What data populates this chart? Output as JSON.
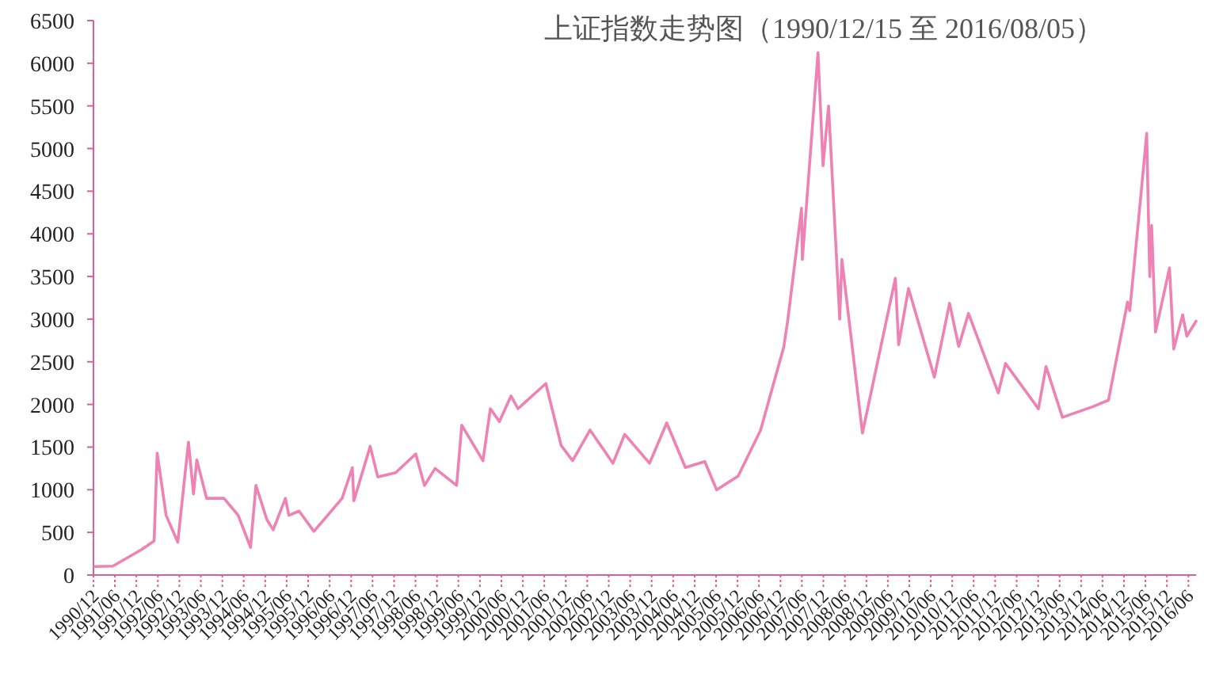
{
  "chart_data": {
    "type": "line",
    "title": "上证指数走势图（1990/12/15 至 2016/08/05）",
    "x": [
      "1990-12-15",
      "1991-05-15",
      "1992-01-15",
      "1992-04-30",
      "1992-05-26",
      "1992-08-10",
      "1992-11-17",
      "1993-02-16",
      "1993-03-31",
      "1993-04-28",
      "1993-07-20",
      "1993-12-15",
      "1994-04-15",
      "1994-07-29",
      "1994-09-13",
      "1994-12-15",
      "1995-02-07",
      "1995-05-22",
      "1995-06-20",
      "1995-09-15",
      "1996-01-19",
      "1996-05-15",
      "1996-09-15",
      "1996-12-11",
      "1996-12-24",
      "1997-05-12",
      "1997-07-15",
      "1997-12-15",
      "1998-06-03",
      "1998-08-17",
      "1998-11-15",
      "1999-05-17",
      "1999-06-30",
      "1999-12-27",
      "2000-02-28",
      "2000-05-15",
      "2000-08-22",
      "2000-10-20",
      "2001-06-14",
      "2001-10-22",
      "2002-01-28",
      "2002-06-25",
      "2003-01-06",
      "2003-04-16",
      "2003-11-13",
      "2004-04-07",
      "2004-09-13",
      "2005-02-25",
      "2005-06-06",
      "2005-12-06",
      "2006-06-15",
      "2006-12-29",
      "2007-02-02",
      "2007-05-29",
      "2007-06-05",
      "2007-10-16",
      "2007-11-28",
      "2008-01-14",
      "2008-04-18",
      "2008-05-06",
      "2008-10-28",
      "2009-08-04",
      "2009-09-01",
      "2009-11-24",
      "2010-07-02",
      "2010-11-08",
      "2011-01-25",
      "2011-04-18",
      "2011-12-28",
      "2012-02-27",
      "2012-12-03",
      "2013-02-06",
      "2013-06-25",
      "2014-03-12",
      "2014-07-22",
      "2014-12-31",
      "2015-01-19",
      "2015-04-27",
      "2015-06-12",
      "2015-07-08",
      "2015-07-24",
      "2015-08-26",
      "2015-12-23",
      "2016-01-28",
      "2016-04-13",
      "2016-05-18",
      "2016-08-05"
    ],
    "values": [
      100,
      105,
      300,
      400,
      1429,
      700,
      386,
      1558,
      950,
      1350,
      900,
      900,
      700,
      325,
      1052,
      650,
      530,
      900,
      700,
      750,
      512,
      700,
      900,
      1258,
      870,
      1510,
      1150,
      1200,
      1420,
      1050,
      1250,
      1050,
      1756,
      1340,
      1950,
      1800,
      2100,
      1950,
      2245,
      1520,
      1340,
      1700,
      1310,
      1650,
      1310,
      1783,
      1260,
      1330,
      998,
      1160,
      1700,
      2675,
      3000,
      4300,
      3700,
      6124,
      4800,
      5500,
      3000,
      3700,
      1664,
      3478,
      2700,
      3360,
      2320,
      3186,
      2680,
      3067,
      2134,
      2480,
      1949,
      2444,
      1849,
      1974,
      2050,
      3200,
      3100,
      4500,
      5178,
      3500,
      4100,
      2850,
      3600,
      2650,
      3050,
      2800,
      2976
    ],
    "color": "#ee82b4",
    "xlim": [
      "1990-12-01",
      "2016-08-05"
    ],
    "xticks": [
      {
        "value": "1990-12",
        "label": "1990/12"
      },
      {
        "value": "1991-06",
        "label": "1991/06"
      },
      {
        "value": "1991-12",
        "label": "1991/12"
      },
      {
        "value": "1992-06",
        "label": "1992/06"
      },
      {
        "value": "1992-12",
        "label": "1992/12"
      },
      {
        "value": "1993-06",
        "label": "1993/06"
      },
      {
        "value": "1993-12",
        "label": "1993/12"
      },
      {
        "value": "1994-06",
        "label": "1994/06"
      },
      {
        "value": "1994-12",
        "label": "1994/12"
      },
      {
        "value": "1995-06",
        "label": "1995/06"
      },
      {
        "value": "1995-12",
        "label": "1995/12"
      },
      {
        "value": "1996-06",
        "label": "1996/06"
      },
      {
        "value": "1996-12",
        "label": "1996/12"
      },
      {
        "value": "1997-06",
        "label": "1997/06"
      },
      {
        "value": "1997-12",
        "label": "1997/12"
      },
      {
        "value": "1998-06",
        "label": "1998/06"
      },
      {
        "value": "1998-12",
        "label": "1998/12"
      },
      {
        "value": "1999-06",
        "label": "1999/06"
      },
      {
        "value": "1999-12",
        "label": "1999/12"
      },
      {
        "value": "2000-06",
        "label": "2000/06"
      },
      {
        "value": "2000-12",
        "label": "2000/12"
      },
      {
        "value": "2001-06",
        "label": "2001/06"
      },
      {
        "value": "2001-12",
        "label": "2001/12"
      },
      {
        "value": "2002-06",
        "label": "2002/06"
      },
      {
        "value": "2002-12",
        "label": "2002/12"
      },
      {
        "value": "2003-06",
        "label": "2003/06"
      },
      {
        "value": "2003-12",
        "label": "2003/12"
      },
      {
        "value": "2004-06",
        "label": "2004/06"
      },
      {
        "value": "2004-12",
        "label": "2004/12"
      },
      {
        "value": "2005-06",
        "label": "2005/06"
      },
      {
        "value": "2005-12",
        "label": "2005/12"
      },
      {
        "value": "2006-06",
        "label": "2006/06"
      },
      {
        "value": "2006-12",
        "label": "2006/12"
      },
      {
        "value": "2007-06",
        "label": "2007/06"
      },
      {
        "value": "2007-12",
        "label": "2007/12"
      },
      {
        "value": "2008-06",
        "label": "2008/06"
      },
      {
        "value": "2008-12",
        "label": "2008/12"
      },
      {
        "value": "2009-06",
        "label": "2009/06"
      },
      {
        "value": "2009-12",
        "label": "2009/12"
      },
      {
        "value": "2010-06",
        "label": "2010/06"
      },
      {
        "value": "2010-12",
        "label": "2010/12"
      },
      {
        "value": "2011-06",
        "label": "2011/06"
      },
      {
        "value": "2011-12",
        "label": "2011/12"
      },
      {
        "value": "2012-06",
        "label": "2012/06"
      },
      {
        "value": "2012-12",
        "label": "2012/12"
      },
      {
        "value": "2013-06",
        "label": "2013/06"
      },
      {
        "value": "2013-12",
        "label": "2013/12"
      },
      {
        "value": "2014-06",
        "label": "2014/06"
      },
      {
        "value": "2014-12",
        "label": "2014/12"
      },
      {
        "value": "2015-06",
        "label": "2015/06"
      },
      {
        "value": "2015-12",
        "label": "2015/12"
      },
      {
        "value": "2016-06",
        "label": "2016/06"
      }
    ],
    "ylim": [
      0,
      6500
    ],
    "yticks": [
      0,
      500,
      1000,
      1500,
      2000,
      2500,
      3000,
      3500,
      4000,
      4500,
      5000,
      5500,
      6000,
      6500
    ],
    "grid": false,
    "marker": "none",
    "line_style": "solid"
  }
}
